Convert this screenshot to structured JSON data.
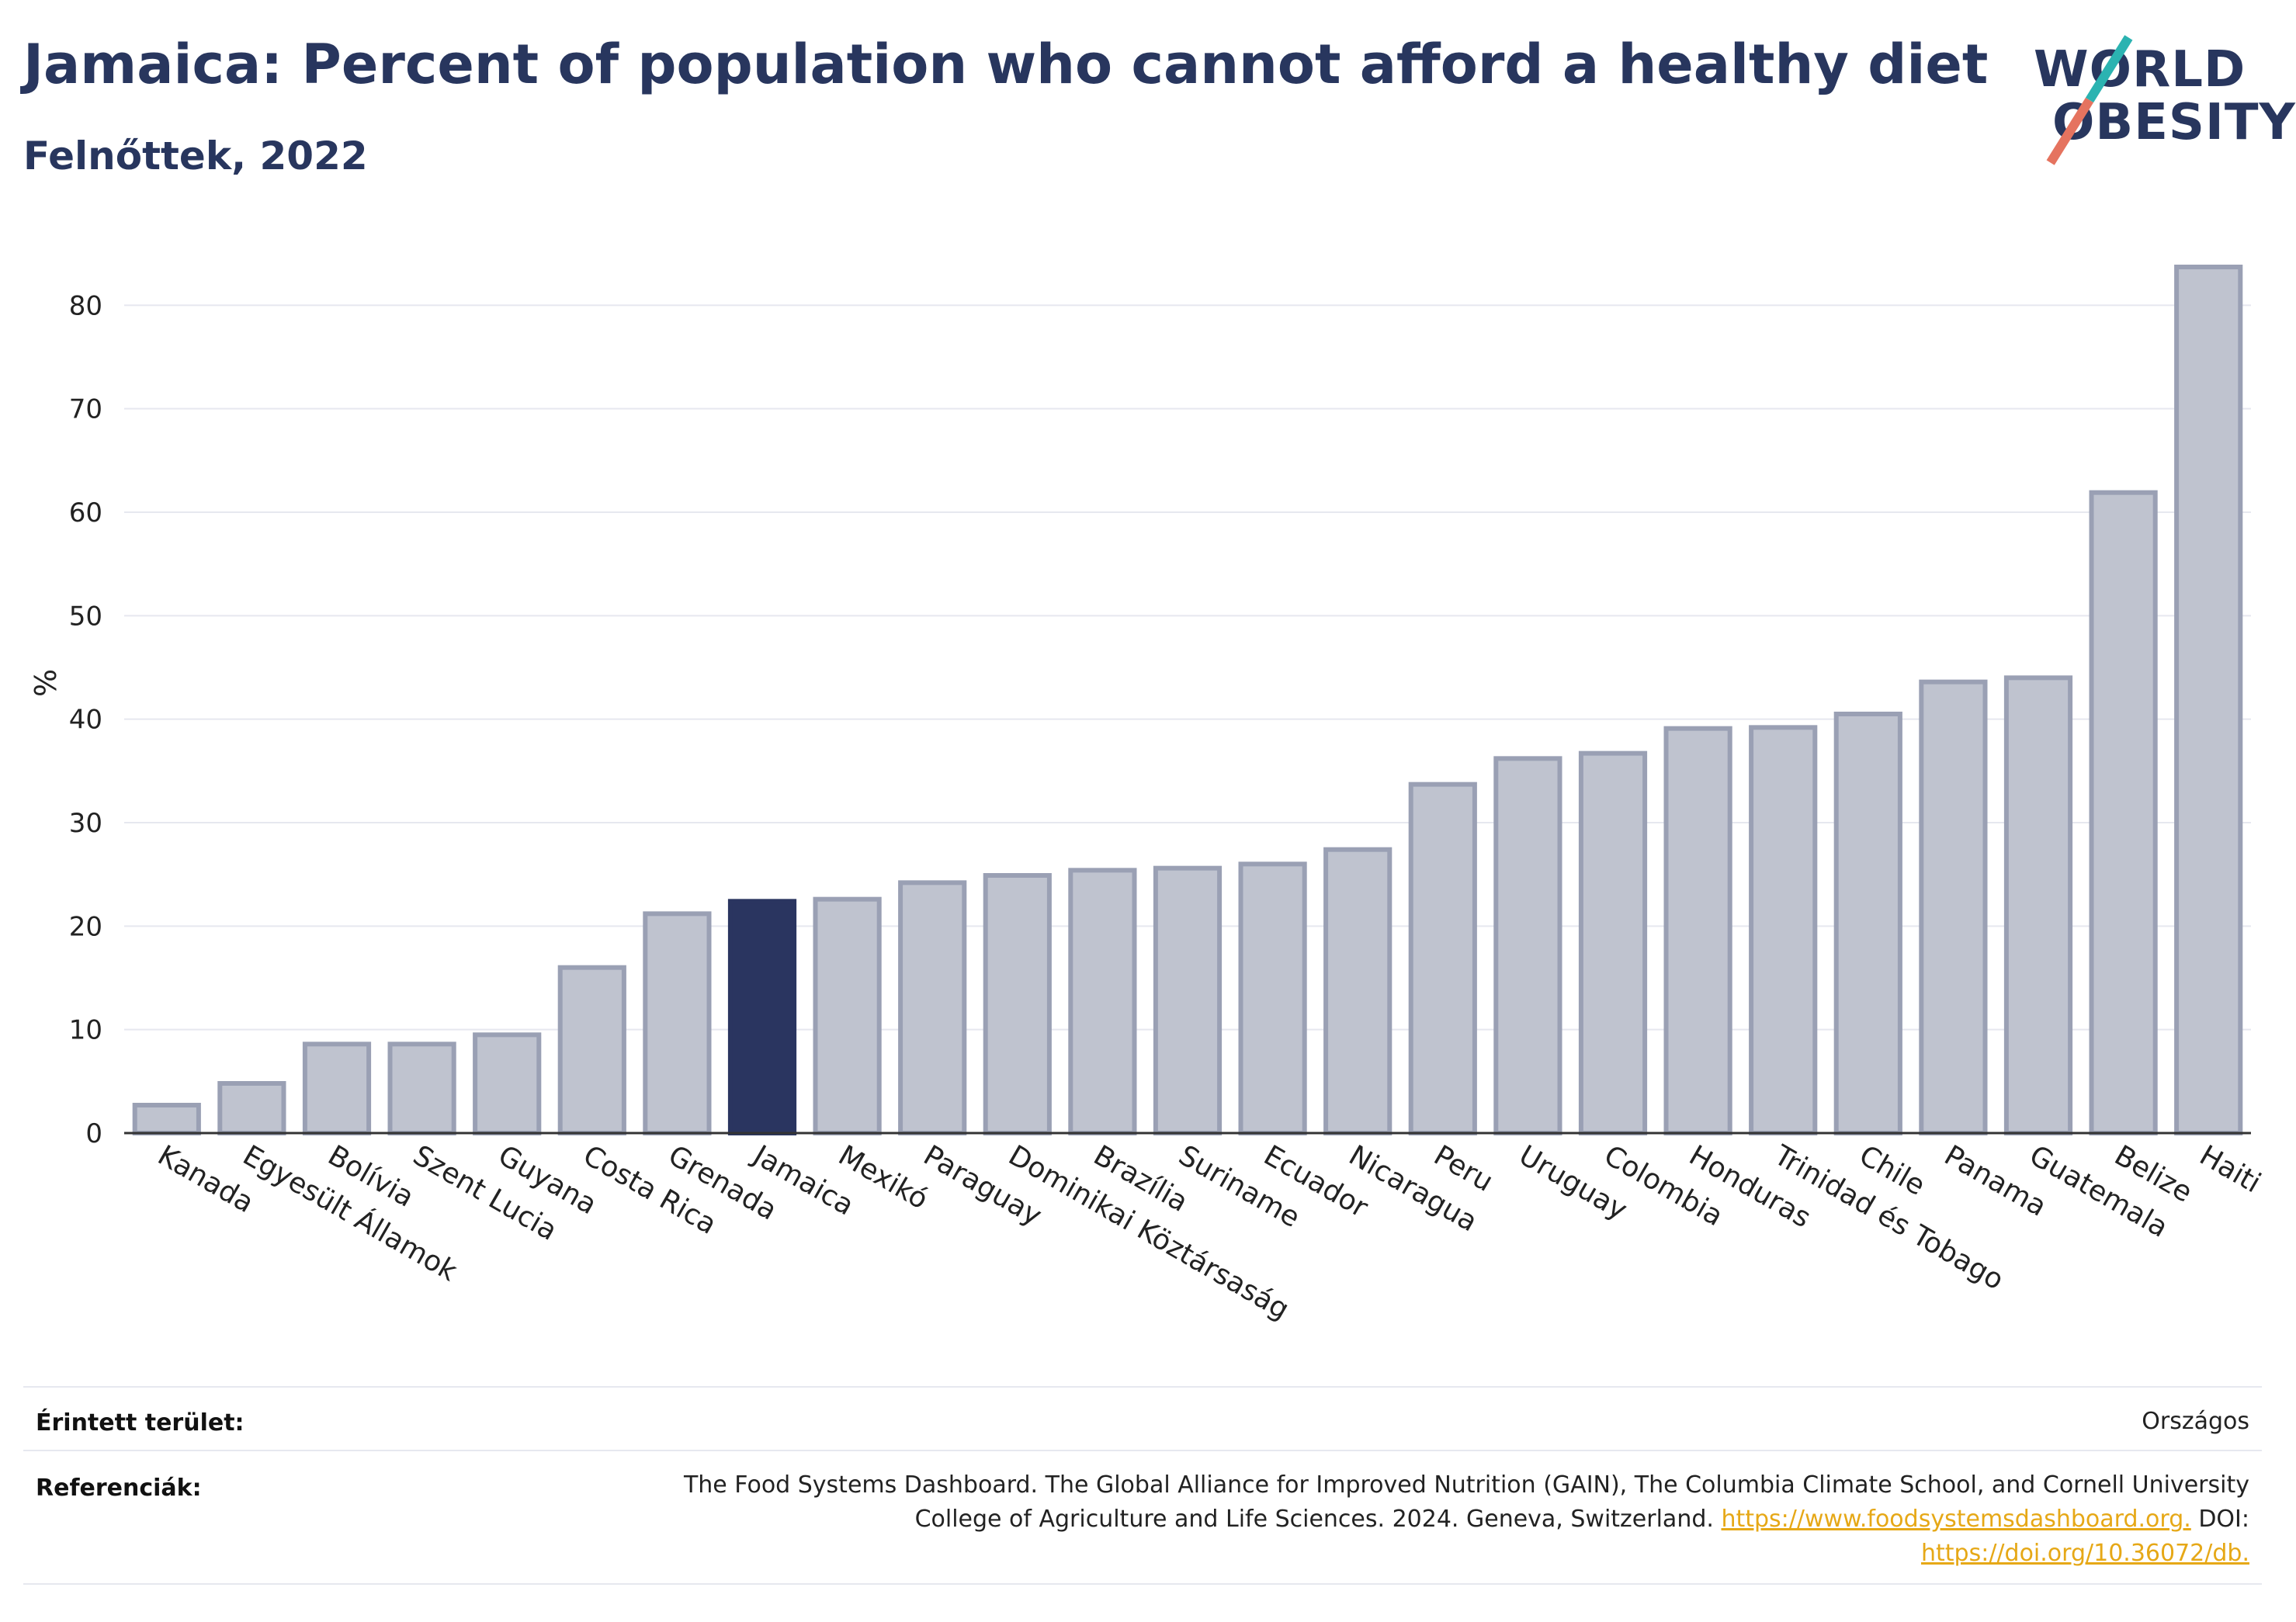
{
  "header": {
    "title": "Jamaica: Percent of population who cannot afford a healthy diet",
    "subtitle": "Felnőttek, 2022"
  },
  "logo": {
    "line1": "WORLD",
    "line2": "OBESITY"
  },
  "chart_data": {
    "type": "bar",
    "ylabel": "%",
    "ylim": [
      0,
      87
    ],
    "yticks": [
      0,
      10,
      20,
      30,
      40,
      50,
      60,
      70,
      80
    ],
    "grid": true,
    "highlight": "Jamaica",
    "colors": {
      "bar": "#bfc3cf",
      "bar_edge": "#9aa0b4",
      "highlight": "#2a3560"
    },
    "categories": [
      "Kanada",
      "Egyesült Államok",
      "Bolívia",
      "Szent Lucia",
      "Guyana",
      "Costa Rica",
      "Grenada",
      "Jamaica",
      "Mexikó",
      "Paraguay",
      "Dominikai Köztársaság",
      "Brazília",
      "Suriname",
      "Ecuador",
      "Nicaragua",
      "Peru",
      "Uruguay",
      "Colombia",
      "Honduras",
      "Trinidad és Tobago",
      "Chile",
      "Panama",
      "Guatemala",
      "Belize",
      "Haiti"
    ],
    "values": [
      2.7,
      4.8,
      8.6,
      8.6,
      9.5,
      16.0,
      21.2,
      22.4,
      22.6,
      24.2,
      24.9,
      25.4,
      25.6,
      26.0,
      27.4,
      33.7,
      36.2,
      36.7,
      39.1,
      39.2,
      40.5,
      43.6,
      44.0,
      61.9,
      83.7
    ]
  },
  "meta": {
    "area_label": "Érintett terület:",
    "area_value": "Országos",
    "ref_label": "Referenciák:",
    "ref_text_1": "The Food Systems Dashboard. The Global Alliance for Improved Nutrition (GAIN), The Columbia Climate School, and Cornell University",
    "ref_text_2": "College of Agriculture and Life Sciences. 2024. Geneva, Switzerland.",
    "ref_link_1": "https://www.foodsystemsdashboard.org.",
    "ref_text_3": "DOI:",
    "ref_link_2": "https://doi.org/10.36072/db."
  }
}
